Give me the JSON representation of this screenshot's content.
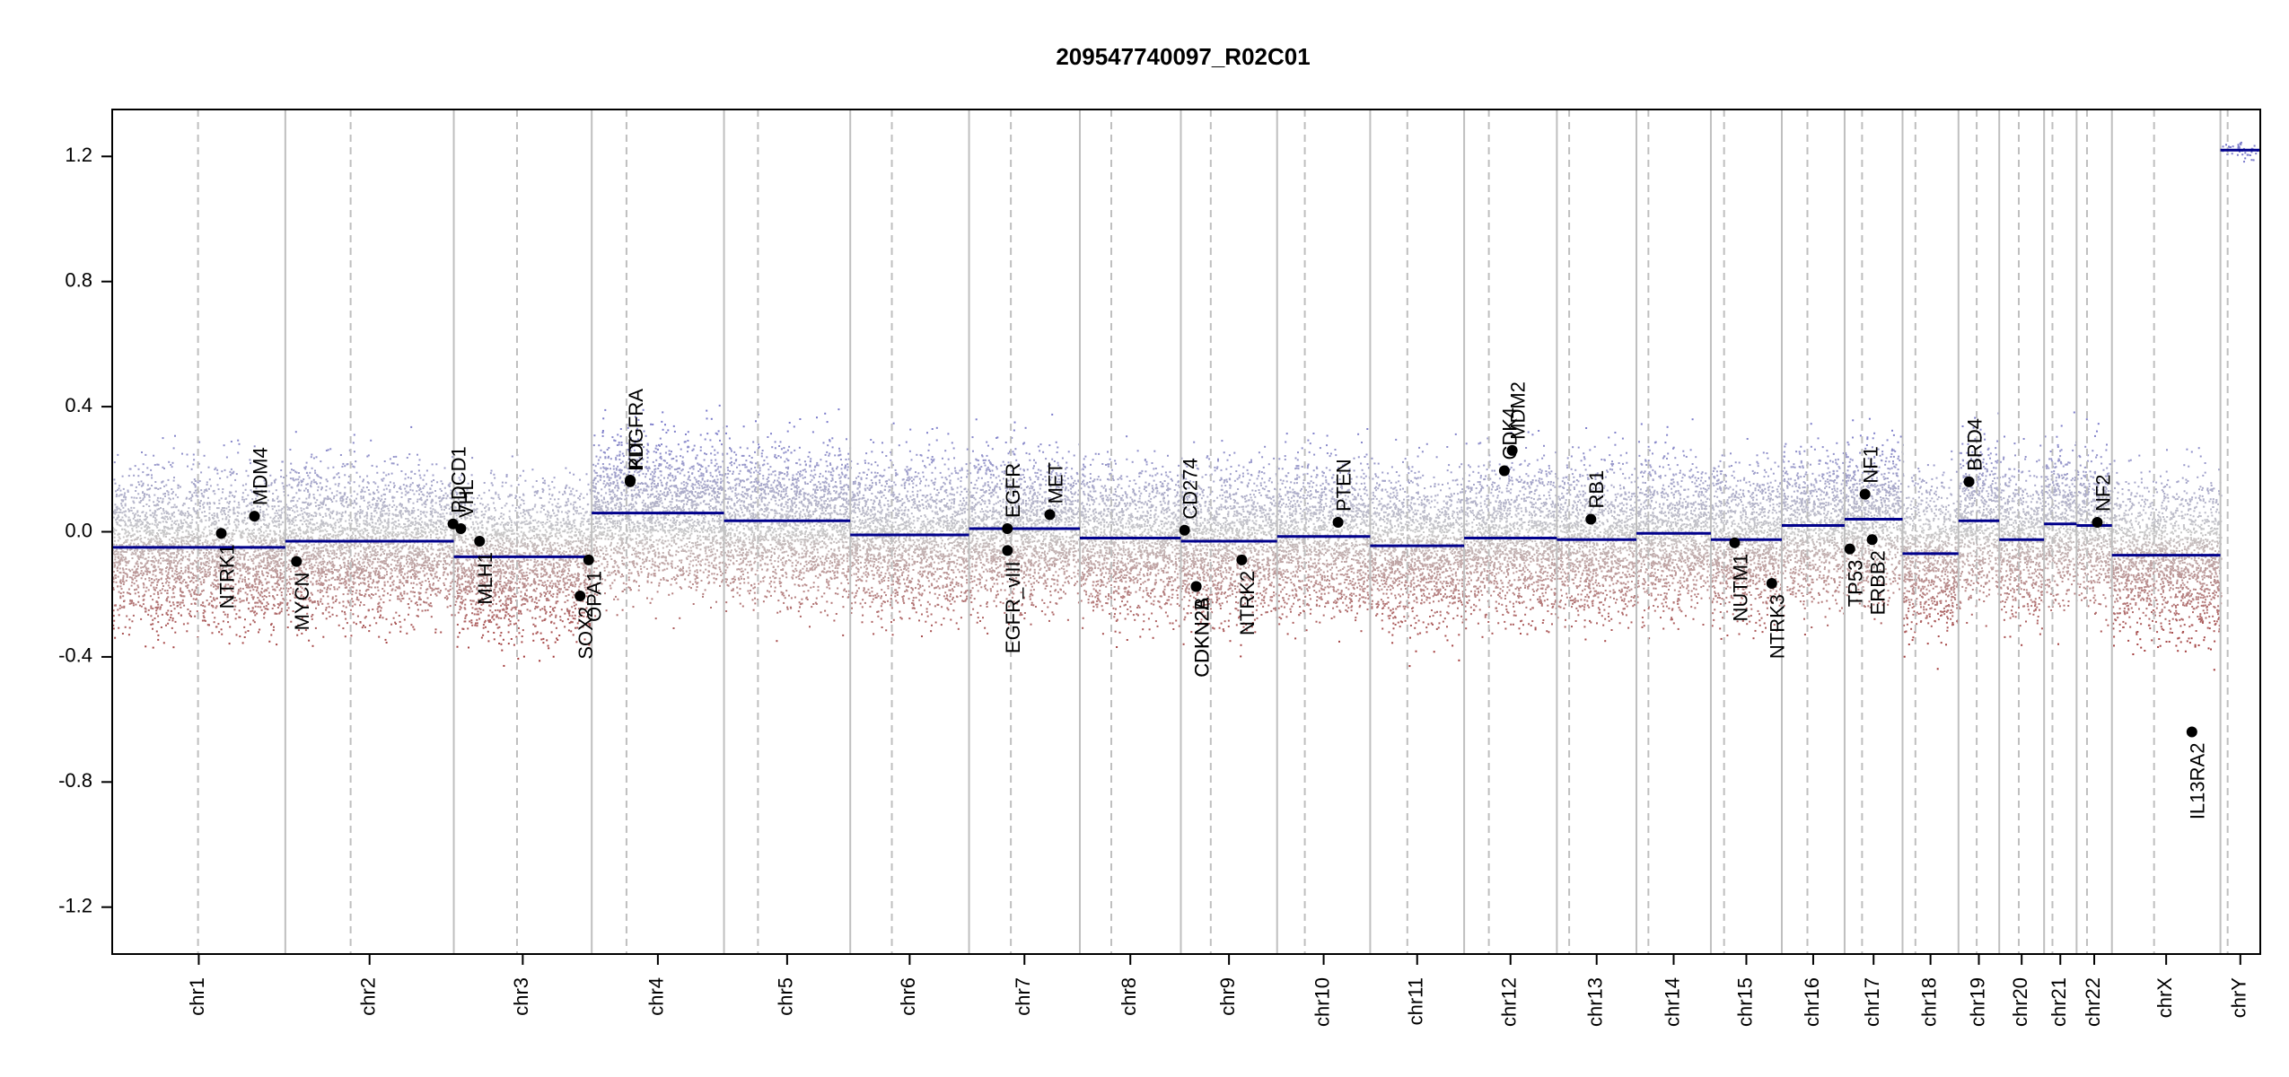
{
  "chart_data": {
    "type": "scatter",
    "title": "209547740097_R02C01",
    "xlabel": "",
    "ylabel": "",
    "ylim": [
      -1.35,
      1.35
    ],
    "y_ticks": [
      -1.2,
      -0.8,
      -0.4,
      0.0,
      0.4,
      0.8,
      1.2
    ],
    "y_tick_labels": [
      "-1.2",
      "-0.8",
      "-0.4",
      "0.0",
      "0.4",
      "0.8",
      "1.2"
    ],
    "chromosomes": [
      {
        "name": "chr1",
        "start": 0.0,
        "end": 248.9,
        "centromere": 123.4
      },
      {
        "name": "chr2",
        "start": 248.9,
        "end": 491.1,
        "centromere": 93.9
      },
      {
        "name": "chr3",
        "start": 491.1,
        "end": 689.4,
        "centromere": 90.9
      },
      {
        "name": "chr4",
        "start": 689.4,
        "end": 879.6,
        "centromere": 50.0
      },
      {
        "name": "chr5",
        "start": 879.6,
        "end": 1061.1,
        "centromere": 48.8
      },
      {
        "name": "chr6",
        "start": 1061.1,
        "end": 1231.9,
        "centromere": 59.8
      },
      {
        "name": "chr7",
        "start": 1231.9,
        "end": 1391.2,
        "centromere": 60.1
      },
      {
        "name": "chr8",
        "start": 1391.2,
        "end": 1536.4,
        "centromere": 45.2
      },
      {
        "name": "chr9",
        "start": 1536.4,
        "end": 1674.8,
        "centromere": 43.0
      },
      {
        "name": "chr10",
        "start": 1674.8,
        "end": 1808.6,
        "centromere": 39.8
      },
      {
        "name": "chr11",
        "start": 1808.6,
        "end": 1943.7,
        "centromere": 53.4
      },
      {
        "name": "chr12",
        "start": 1943.7,
        "end": 2077.0,
        "centromere": 35.5
      },
      {
        "name": "chr13",
        "start": 2077.0,
        "end": 2191.4,
        "centromere": 17.7
      },
      {
        "name": "chr14",
        "start": 2191.4,
        "end": 2298.4,
        "centromere": 17.2
      },
      {
        "name": "chr15",
        "start": 2298.4,
        "end": 2400.4,
        "centromere": 19.0
      },
      {
        "name": "chr16",
        "start": 2400.4,
        "end": 2490.7,
        "centromere": 36.8
      },
      {
        "name": "chr17",
        "start": 2490.7,
        "end": 2574.0,
        "centromere": 25.1
      },
      {
        "name": "chr18",
        "start": 2574.0,
        "end": 2654.4,
        "centromere": 18.5
      },
      {
        "name": "chr19",
        "start": 2654.4,
        "end": 2713.0,
        "centromere": 26.2
      },
      {
        "name": "chr20",
        "start": 2713.0,
        "end": 2777.5,
        "centromere": 28.1
      },
      {
        "name": "chr21",
        "start": 2777.5,
        "end": 2824.2,
        "centromere": 12.0
      },
      {
        "name": "chr22",
        "start": 2824.2,
        "end": 2875.0,
        "centromere": 15.0
      },
      {
        "name": "chrX",
        "start": 2875.0,
        "end": 3031.0,
        "centromere": 60.6
      },
      {
        "name": "chrY",
        "start": 3031.0,
        "end": 3088.3,
        "centromere": 10.4
      }
    ],
    "x_extent": [
      0,
      3088.3
    ],
    "segments": [
      {
        "start": 0.0,
        "end": 248.9,
        "value": -0.05
      },
      {
        "start": 248.9,
        "end": 491.1,
        "value": -0.03
      },
      {
        "start": 491.1,
        "end": 689.4,
        "value": -0.08
      },
      {
        "start": 689.4,
        "end": 879.6,
        "value": 0.06
      },
      {
        "start": 879.6,
        "end": 1061.1,
        "value": 0.035
      },
      {
        "start": 1061.1,
        "end": 1231.9,
        "value": -0.01
      },
      {
        "start": 1231.9,
        "end": 1391.2,
        "value": 0.01
      },
      {
        "start": 1391.2,
        "end": 1536.4,
        "value": -0.02
      },
      {
        "start": 1536.4,
        "end": 1674.8,
        "value": -0.03
      },
      {
        "start": 1674.8,
        "end": 1808.6,
        "value": -0.015
      },
      {
        "start": 1808.6,
        "end": 1943.7,
        "value": -0.045
      },
      {
        "start": 1943.7,
        "end": 2077.0,
        "value": -0.02
      },
      {
        "start": 2077.0,
        "end": 2191.4,
        "value": -0.025
      },
      {
        "start": 2191.4,
        "end": 2298.4,
        "value": -0.005
      },
      {
        "start": 2298.4,
        "end": 2400.4,
        "value": -0.025
      },
      {
        "start": 2400.4,
        "end": 2490.7,
        "value": 0.02
      },
      {
        "start": 2490.7,
        "end": 2574.0,
        "value": 0.04
      },
      {
        "start": 2574.0,
        "end": 2654.4,
        "value": -0.07
      },
      {
        "start": 2654.4,
        "end": 2713.0,
        "value": 0.035
      },
      {
        "start": 2713.0,
        "end": 2777.5,
        "value": -0.025
      },
      {
        "start": 2777.5,
        "end": 2824.2,
        "value": 0.025
      },
      {
        "start": 2824.2,
        "end": 2875.0,
        "value": 0.02
      },
      {
        "start": 2875.0,
        "end": 3031.0,
        "value": -0.075
      },
      {
        "start": 3031.0,
        "end": 3088.3,
        "value": 1.22
      }
    ],
    "genes": [
      {
        "name": "NTRK1",
        "x": 156.8,
        "y": -0.005,
        "label_side": "below"
      },
      {
        "name": "MDM4",
        "x": 204.5,
        "y": 0.05,
        "label_side": "above"
      },
      {
        "name": "MYCN",
        "x": 264.9,
        "y": -0.095,
        "label_side": "below"
      },
      {
        "name": "PDCD1",
        "x": 490.0,
        "y": 0.025,
        "label_side": "above"
      },
      {
        "name": "VHL",
        "x": 501.2,
        "y": 0.01,
        "label_side": "above"
      },
      {
        "name": "MLH1",
        "x": 528.2,
        "y": -0.03,
        "label_side": "below"
      },
      {
        "name": "SOX2",
        "x": 672.7,
        "y": -0.205,
        "label_side": "below"
      },
      {
        "name": "OPA1",
        "x": 685.0,
        "y": -0.09,
        "label_side": "below"
      },
      {
        "name": "KIT",
        "x": 744.8,
        "y": 0.165,
        "label_side": "above"
      },
      {
        "name": "PDGFRA",
        "x": 744.6,
        "y": 0.16,
        "label_side": "above"
      },
      {
        "name": "EGFR",
        "x": 1287.0,
        "y": 0.01,
        "label_side": "above"
      },
      {
        "name": "EGFR_vIII",
        "x": 1287.1,
        "y": -0.06,
        "label_side": "below"
      },
      {
        "name": "MET",
        "x": 1348.0,
        "y": 0.055,
        "label_side": "above"
      },
      {
        "name": "CD274",
        "x": 1541.8,
        "y": 0.005,
        "label_side": "above"
      },
      {
        "name": "CDKN2A",
        "x": 1558.4,
        "y": -0.175,
        "label_side": "below"
      },
      {
        "name": "CDKN2B",
        "x": 1558.5,
        "y": -0.175,
        "label_side": "below"
      },
      {
        "name": "NTRK2",
        "x": 1624.0,
        "y": -0.09,
        "label_side": "below"
      },
      {
        "name": "PTEN",
        "x": 1762.4,
        "y": 0.03,
        "label_side": "above"
      },
      {
        "name": "CDK4",
        "x": 2001.5,
        "y": 0.195,
        "label_side": "above"
      },
      {
        "name": "MDM2",
        "x": 2012.8,
        "y": 0.26,
        "label_side": "above"
      },
      {
        "name": "RB1",
        "x": 2125.9,
        "y": 0.04,
        "label_side": "above"
      },
      {
        "name": "NUTM1",
        "x": 2332.6,
        "y": -0.035,
        "label_side": "below"
      },
      {
        "name": "NTRK3",
        "x": 2386.0,
        "y": -0.165,
        "label_side": "below"
      },
      {
        "name": "TP53",
        "x": 2498.2,
        "y": -0.055,
        "label_side": "below"
      },
      {
        "name": "NF1",
        "x": 2520.0,
        "y": 0.12,
        "label_side": "above"
      },
      {
        "name": "ERBB2",
        "x": 2530.3,
        "y": -0.025,
        "label_side": "below"
      },
      {
        "name": "BRD4",
        "x": 2669.5,
        "y": 0.16,
        "label_side": "above"
      },
      {
        "name": "NF2",
        "x": 2854.0,
        "y": 0.03,
        "label_side": "above"
      },
      {
        "name": "IL13RA2",
        "x": 2990.0,
        "y": -0.64,
        "label_side": "below"
      }
    ],
    "colors": {
      "gain": "#7b7bcb",
      "neutral": "#c8c8c8",
      "loss": "#a13535",
      "segment": "#00008b",
      "gene_point": "#000000",
      "chrom_boundary": "#bfbfbf",
      "centromere": "#bfbfbf"
    },
    "grid": false,
    "legend": "none"
  }
}
